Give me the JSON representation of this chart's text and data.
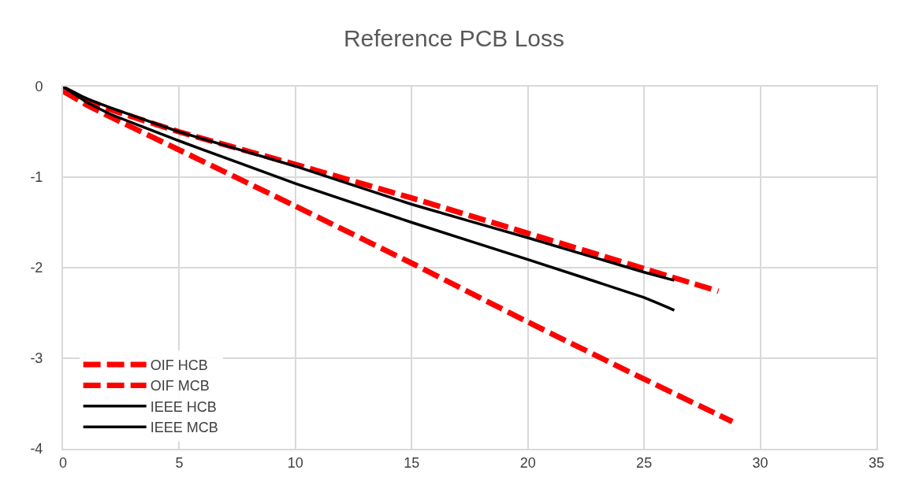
{
  "chart_data": {
    "type": "line",
    "title": "Reference PCB Loss",
    "xlim": [
      0,
      35
    ],
    "xticks": [
      0,
      5,
      10,
      15,
      20,
      25,
      30,
      35
    ],
    "ylim": [
      -4,
      0
    ],
    "yticks": [
      -4,
      -3,
      -2,
      -1,
      0
    ],
    "grid": true,
    "legend": "bottom left",
    "marker": "none",
    "series": [
      {
        "name": "OIF HCB",
        "color": "#ff0000",
        "line_style": "dashed",
        "x": [
          0,
          1,
          2,
          5,
          10,
          15,
          20,
          25,
          28.2
        ],
        "values": [
          -0.02,
          -0.15,
          -0.25,
          -0.5,
          -0.86,
          -1.23,
          -1.62,
          -2.01,
          -2.26
        ]
      },
      {
        "name": "OIF MCB",
        "color": "#ff0000",
        "line_style": "dashed",
        "x": [
          0,
          1,
          2,
          5,
          10,
          15,
          20,
          25,
          28.8
        ],
        "values": [
          -0.05,
          -0.2,
          -0.33,
          -0.7,
          -1.32,
          -1.95,
          -2.6,
          -3.23,
          -3.7
        ]
      },
      {
        "name": "IEEE HCB",
        "color": "#000000",
        "line_style": "solid",
        "x": [
          0,
          1,
          2,
          5,
          10,
          15,
          20,
          25,
          26.3
        ],
        "values": [
          0,
          -0.13,
          -0.23,
          -0.5,
          -0.88,
          -1.3,
          -1.67,
          -2.05,
          -2.14
        ]
      },
      {
        "name": "IEEE MCB",
        "color": "#000000",
        "line_style": "solid",
        "x": [
          0,
          1,
          2,
          5,
          10,
          15,
          20,
          25,
          26.3
        ],
        "values": [
          0,
          -0.17,
          -0.3,
          -0.6,
          -1.07,
          -1.5,
          -1.91,
          -2.33,
          -2.47
        ]
      }
    ]
  }
}
